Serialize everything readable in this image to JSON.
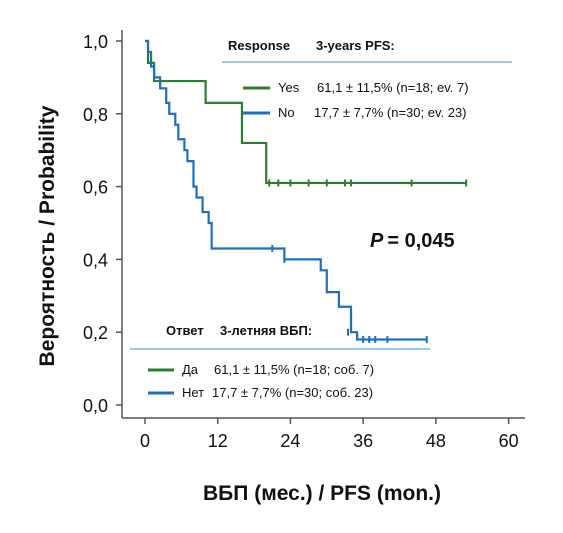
{
  "chart_data": {
    "type": "line",
    "subtype": "kaplan-meier",
    "xlabel": "ВБП (мес.) / PFS (mon.)",
    "ylabel": "Вероятность / Probability",
    "xlim": [
      0,
      60
    ],
    "ylim": [
      0,
      1
    ],
    "x_ticks": [
      0,
      12,
      24,
      36,
      48,
      60
    ],
    "y_ticks": [
      0.0,
      0.2,
      0.4,
      0.6,
      0.8,
      1.0
    ],
    "x_tick_labels": [
      "0",
      "12",
      "24",
      "36",
      "48",
      "60"
    ],
    "y_tick_labels": [
      "0,0",
      "0,2",
      "0,4",
      "0,6",
      "0,8",
      "1,0"
    ],
    "grid": false,
    "annotation": {
      "p_label": "P",
      "p_value": "= 0,045"
    },
    "legend_en": {
      "header_left": "Response",
      "header_right": "3-years PFS:",
      "position": "top-right",
      "entries": [
        {
          "label": "Yes",
          "text": "61,1 ± 11,5% (n=18; ev. 7)",
          "color": "#2e7d32"
        },
        {
          "label": "No",
          "text": "17,7 ± 7,7% (n=30; ev. 23)",
          "color": "#1f6fbf"
        }
      ]
    },
    "legend_ru": {
      "header_left": "Ответ",
      "header_right": "3-летняя ВБП:",
      "position": "bottom-left",
      "entries": [
        {
          "label": "Да",
          "text": "61,1 ± 11,5% (n=18; соб. 7)",
          "color": "#2e7d32"
        },
        {
          "label": "Нет",
          "text": "17,7 ± 7,7% (n=30; соб. 23)",
          "color": "#1f6fbf"
        }
      ]
    },
    "series": [
      {
        "color": "#2e7d32",
        "steps": [
          [
            0,
            1.0
          ],
          [
            0.5,
            0.94
          ],
          [
            1.5,
            0.89
          ],
          [
            10,
            0.83
          ],
          [
            16,
            0.72
          ],
          [
            20,
            0.61
          ],
          [
            53,
            0.61
          ]
        ],
        "censored": [
          [
            20.5,
            0.61
          ],
          [
            22,
            0.61
          ],
          [
            24,
            0.61
          ],
          [
            27,
            0.61
          ],
          [
            30,
            0.61
          ],
          [
            33,
            0.61
          ],
          [
            34,
            0.61
          ],
          [
            44,
            0.61
          ],
          [
            53,
            0.61
          ]
        ]
      },
      {
        "color": "#1f6fbf",
        "steps": [
          [
            0,
            1.0
          ],
          [
            0.5,
            0.97
          ],
          [
            1,
            0.93
          ],
          [
            1.5,
            0.9
          ],
          [
            2.5,
            0.87
          ],
          [
            3.5,
            0.83
          ],
          [
            4,
            0.8
          ],
          [
            5,
            0.77
          ],
          [
            5.5,
            0.73
          ],
          [
            6.5,
            0.7
          ],
          [
            7,
            0.67
          ],
          [
            8,
            0.6
          ],
          [
            8.5,
            0.57
          ],
          [
            9.5,
            0.53
          ],
          [
            10.5,
            0.5
          ],
          [
            11,
            0.43
          ],
          [
            22,
            0.43
          ],
          [
            23,
            0.4
          ],
          [
            29,
            0.37
          ],
          [
            30,
            0.31
          ],
          [
            32,
            0.27
          ],
          [
            34,
            0.2
          ],
          [
            35,
            0.18
          ],
          [
            46.5,
            0.18
          ]
        ],
        "censored": [
          [
            21,
            0.43
          ],
          [
            23,
            0.4
          ],
          [
            33.5,
            0.2
          ],
          [
            36,
            0.18
          ],
          [
            37,
            0.18
          ],
          [
            38,
            0.18
          ],
          [
            40,
            0.18
          ],
          [
            46.5,
            0.18
          ]
        ]
      }
    ]
  }
}
